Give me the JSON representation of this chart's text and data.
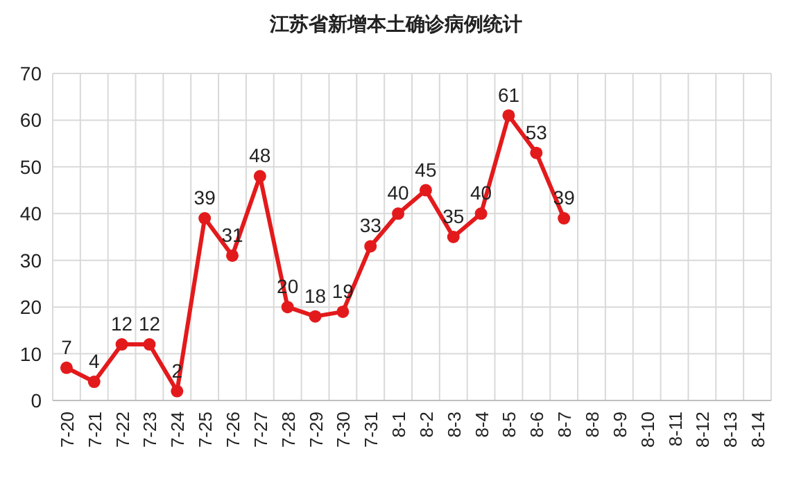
{
  "chart_data": {
    "type": "line",
    "title": "江苏省新增本土确诊病例统计",
    "categories": [
      "7-20",
      "7-21",
      "7-22",
      "7-23",
      "7-24",
      "7-25",
      "7-26",
      "7-27",
      "7-28",
      "7-29",
      "7-30",
      "7-31",
      "8-1",
      "8-2",
      "8-3",
      "8-4",
      "8-5",
      "8-6",
      "8-7",
      "8-8",
      "8-9",
      "8-10",
      "8-11",
      "8-12",
      "8-13",
      "8-14"
    ],
    "series": [
      {
        "color": "#e31a1c",
        "values": [
          7,
          4,
          12,
          12,
          2,
          39,
          31,
          48,
          20,
          18,
          19,
          33,
          40,
          45,
          35,
          40,
          61,
          53,
          39,
          null,
          null,
          null,
          null,
          null,
          null,
          null
        ]
      }
    ],
    "ylim": [
      0,
      70
    ],
    "yticks": [
      0,
      10,
      20,
      30,
      40,
      50,
      60,
      70
    ],
    "grid": true,
    "marker": "circle",
    "data_labels": true
  }
}
